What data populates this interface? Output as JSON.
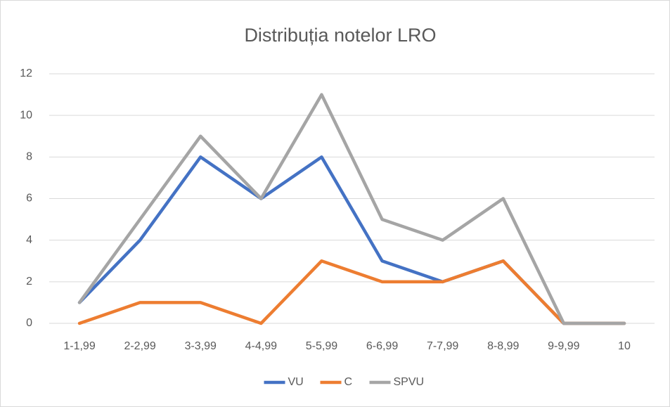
{
  "chart_data": {
    "type": "line",
    "title": "Distribuția notelor LRO",
    "categories": [
      "1-1,99",
      "2-2,99",
      "3-3,99",
      "4-4,99",
      "5-5,99",
      "6-6,99",
      "7-7,99",
      "8-8,99",
      "9-9,99",
      "10"
    ],
    "series": [
      {
        "name": "VU",
        "color": "#4472c4",
        "values": [
          1,
          4,
          8,
          6,
          8,
          3,
          2,
          3,
          0,
          0
        ]
      },
      {
        "name": "C",
        "color": "#ed7d31",
        "values": [
          0,
          1,
          1,
          0,
          3,
          2,
          2,
          3,
          0,
          0
        ]
      },
      {
        "name": "SPVU",
        "color": "#a5a5a5",
        "values": [
          1,
          5,
          9,
          6,
          11,
          5,
          4,
          6,
          0,
          0
        ]
      }
    ],
    "ylim": [
      0,
      12
    ],
    "yticks": [
      0,
      2,
      4,
      6,
      8,
      10,
      12
    ],
    "grid": true,
    "legend": "bottom"
  }
}
